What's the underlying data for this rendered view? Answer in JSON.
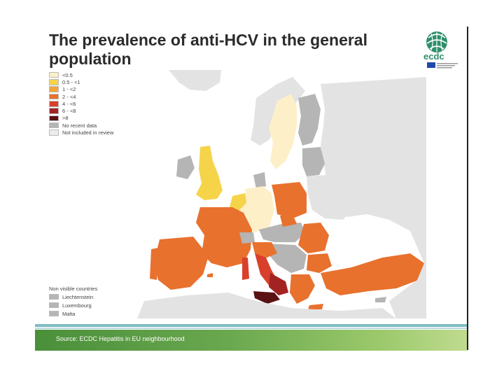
{
  "slide": {
    "title_line1": "The prevalence of anti-HCV in the general",
    "title_line2": "population",
    "logo_text": "ecdc"
  },
  "legend": {
    "items": [
      {
        "label": "<0.5",
        "color": "#fdf0c8"
      },
      {
        "label": "0.5 - <1",
        "color": "#f6d44a"
      },
      {
        "label": "1 - <2",
        "color": "#f0a63a"
      },
      {
        "label": "2 - <4",
        "color": "#e8712e"
      },
      {
        "label": "4 - <6",
        "color": "#d8402c"
      },
      {
        "label": "6 - <8",
        "color": "#a32323"
      },
      {
        "label": ">8",
        "color": "#5a1212"
      },
      {
        "label": "No recent data",
        "color": "#b5b5b5"
      },
      {
        "label": "Not included in review",
        "color": "#ececec"
      }
    ]
  },
  "non_visible": {
    "title": "Non visible countries",
    "items": [
      {
        "label": "Liechtenstein",
        "color": "#b5b5b5"
      },
      {
        "label": "Luxembourg",
        "color": "#b5b5b5"
      },
      {
        "label": "Malta",
        "color": "#b5b5b5"
      }
    ]
  },
  "map": {
    "sea_color": "#ffffff",
    "land_colors": {
      "not_included": "#e3e3e3",
      "no_data": "#b5b5b5",
      "lt05": "#fdf0c8",
      "p05_1": "#f6d44a",
      "p2_4": "#e8712e",
      "p4_6": "#d8402c",
      "p6_8": "#a32323",
      "gt8": "#5a1212"
    }
  },
  "footer": {
    "source": "Source: ECDC Hepatitis in EU neighbourhood"
  }
}
